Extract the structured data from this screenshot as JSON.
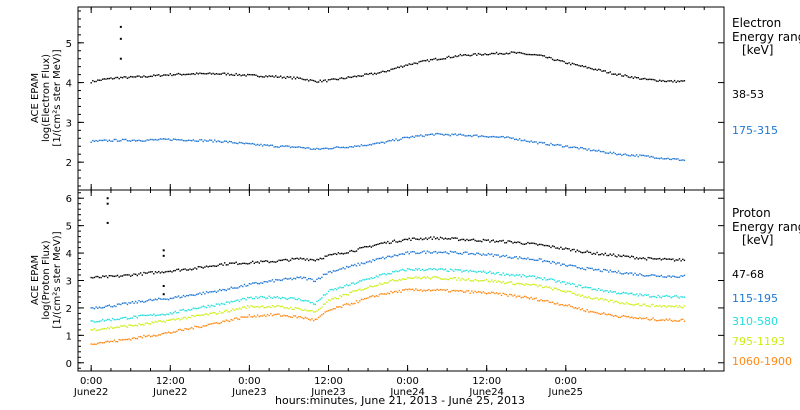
{
  "chart_data": [
    {
      "type": "scatter",
      "panel": "electron",
      "ylabel_lines": [
        "ACE EPAM",
        "log(Electron Flux)",
        "[1/(cm²s ster MeV)]"
      ],
      "ylim": [
        1.3,
        5.9
      ],
      "yticks": [
        2,
        3,
        4,
        5
      ],
      "legend_title_lines": [
        "Electron",
        "Energy ranges",
        "[keV]"
      ],
      "series": [
        {
          "name": "38-53",
          "color": "#000000",
          "x": [
            0,
            2,
            4,
            6,
            8,
            12,
            16,
            20,
            24,
            28,
            32,
            34,
            36,
            40,
            44,
            48,
            52,
            56,
            60,
            64,
            68,
            72,
            76,
            80,
            84,
            88,
            90
          ],
          "y": [
            4.02,
            4.08,
            4.12,
            4.13,
            4.15,
            4.2,
            4.22,
            4.22,
            4.18,
            4.15,
            4.1,
            4.03,
            4.05,
            4.15,
            4.25,
            4.45,
            4.58,
            4.68,
            4.72,
            4.75,
            4.68,
            4.5,
            4.35,
            4.2,
            4.08,
            4.03,
            4.03
          ]
        },
        {
          "name": "175-315",
          "color": "#1f77d4",
          "x": [
            0,
            4,
            8,
            12,
            16,
            20,
            24,
            28,
            32,
            34,
            36,
            40,
            44,
            48,
            52,
            56,
            60,
            64,
            68,
            72,
            76,
            80,
            84,
            88,
            90
          ],
          "y": [
            2.52,
            2.55,
            2.55,
            2.57,
            2.55,
            2.52,
            2.45,
            2.4,
            2.37,
            2.32,
            2.35,
            2.4,
            2.48,
            2.62,
            2.7,
            2.68,
            2.65,
            2.6,
            2.48,
            2.4,
            2.3,
            2.2,
            2.15,
            2.08,
            2.05
          ]
        }
      ],
      "spikes": [
        {
          "x": 4.5,
          "y": [
            5.4,
            5.1,
            4.6
          ],
          "color": "#000000"
        }
      ]
    },
    {
      "type": "scatter",
      "panel": "proton",
      "ylabel_lines": [
        "ACE EPAM",
        "log(Proton Flux)",
        "[1/(cm²s ster MeV)]"
      ],
      "ylim": [
        -0.3,
        6.3
      ],
      "yticks": [
        0,
        1,
        2,
        3,
        4,
        5,
        6
      ],
      "legend_title_lines": [
        "Proton",
        "Energy ranges",
        "[keV]"
      ],
      "series": [
        {
          "name": "47-68",
          "color": "#000000",
          "x": [
            0,
            4,
            8,
            12,
            16,
            20,
            24,
            28,
            32,
            34,
            36,
            40,
            44,
            48,
            52,
            56,
            60,
            64,
            68,
            72,
            76,
            80,
            84,
            88,
            90
          ],
          "y": [
            3.1,
            3.15,
            3.25,
            3.35,
            3.45,
            3.6,
            3.65,
            3.7,
            3.8,
            3.75,
            3.9,
            4.1,
            4.35,
            4.5,
            4.55,
            4.5,
            4.45,
            4.4,
            4.3,
            4.15,
            4.0,
            3.9,
            3.8,
            3.75,
            3.75
          ]
        },
        {
          "name": "115-195",
          "color": "#1f77d4",
          "x": [
            0,
            4,
            8,
            12,
            16,
            20,
            24,
            28,
            32,
            34,
            36,
            40,
            44,
            48,
            52,
            56,
            60,
            64,
            68,
            72,
            76,
            80,
            84,
            88,
            90
          ],
          "y": [
            2.0,
            2.1,
            2.25,
            2.35,
            2.5,
            2.65,
            2.85,
            3.0,
            3.1,
            3.0,
            3.3,
            3.55,
            3.8,
            4.0,
            4.05,
            4.0,
            3.95,
            3.85,
            3.75,
            3.55,
            3.4,
            3.3,
            3.2,
            3.15,
            3.15
          ]
        },
        {
          "name": "310-580",
          "color": "#22dddd",
          "x": [
            0,
            4,
            8,
            12,
            16,
            20,
            24,
            28,
            32,
            34,
            36,
            40,
            44,
            48,
            52,
            56,
            60,
            64,
            68,
            72,
            76,
            80,
            84,
            88,
            90
          ],
          "y": [
            1.5,
            1.6,
            1.7,
            1.8,
            2.0,
            2.15,
            2.35,
            2.4,
            2.3,
            2.15,
            2.6,
            2.9,
            3.2,
            3.4,
            3.4,
            3.35,
            3.3,
            3.2,
            3.1,
            2.9,
            2.7,
            2.55,
            2.45,
            2.4,
            2.4
          ]
        },
        {
          "name": "795-1193",
          "color": "#ccee11",
          "x": [
            0,
            4,
            8,
            12,
            16,
            20,
            24,
            28,
            32,
            34,
            36,
            40,
            44,
            48,
            52,
            56,
            60,
            64,
            68,
            72,
            76,
            80,
            84,
            88,
            90
          ],
          "y": [
            1.2,
            1.3,
            1.4,
            1.55,
            1.7,
            1.85,
            2.05,
            2.05,
            1.95,
            1.85,
            2.25,
            2.6,
            2.9,
            3.1,
            3.1,
            3.05,
            3.0,
            2.9,
            2.8,
            2.6,
            2.35,
            2.2,
            2.1,
            2.05,
            2.05
          ]
        },
        {
          "name": "1060-1900",
          "color": "#ff8811",
          "x": [
            0,
            4,
            8,
            12,
            16,
            20,
            24,
            28,
            32,
            34,
            36,
            40,
            44,
            48,
            52,
            56,
            60,
            64,
            68,
            72,
            76,
            80,
            84,
            88,
            90
          ],
          "y": [
            0.7,
            0.8,
            0.95,
            1.1,
            1.3,
            1.5,
            1.7,
            1.75,
            1.65,
            1.55,
            1.9,
            2.2,
            2.5,
            2.65,
            2.65,
            2.6,
            2.55,
            2.45,
            2.3,
            2.1,
            1.85,
            1.7,
            1.6,
            1.55,
            1.55
          ]
        }
      ],
      "spikes": [
        {
          "x": 2.5,
          "y": [
            6.0,
            5.8,
            5.1
          ],
          "color": "#000000"
        },
        {
          "x": 11,
          "y": [
            4.1,
            3.9,
            2.8,
            2.5
          ],
          "color": "#000000"
        }
      ]
    }
  ],
  "x_axis": {
    "range_hours": [
      -2,
      96
    ],
    "ticks": [
      {
        "hour": 0,
        "time": "0:00",
        "day": "June22"
      },
      {
        "hour": 12,
        "time": "12:00",
        "day": "June22"
      },
      {
        "hour": 24,
        "time": "0:00",
        "day": "June23"
      },
      {
        "hour": 36,
        "time": "12:00",
        "day": "June23"
      },
      {
        "hour": 48,
        "time": "0:00",
        "day": "June24"
      },
      {
        "hour": 60,
        "time": "12:00",
        "day": "June24"
      },
      {
        "hour": 72,
        "time": "0:00",
        "day": "June25"
      }
    ],
    "label": "hours:minutes, June 21, 2013 - June 25, 2013"
  }
}
